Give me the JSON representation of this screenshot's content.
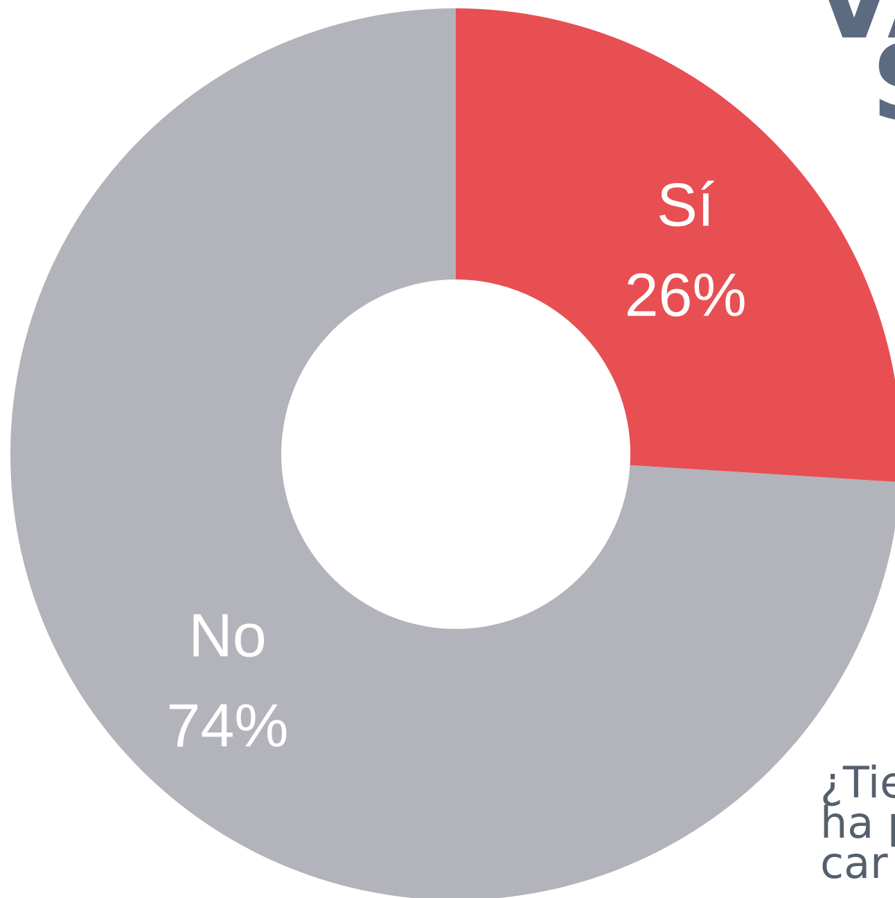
{
  "chart_data": {
    "type": "pie",
    "donut": true,
    "categories": [
      "Sí",
      "No"
    ],
    "values": [
      26,
      74
    ],
    "labels": [
      "26%",
      "74%"
    ],
    "colors": [
      "#e84f53",
      "#b2b3bb"
    ],
    "legend": "none"
  },
  "cropped_text": {
    "title_line1": "VA",
    "title_line2": "S",
    "question_lines": [
      "¿Tie",
      "ha p",
      "car"
    ]
  }
}
